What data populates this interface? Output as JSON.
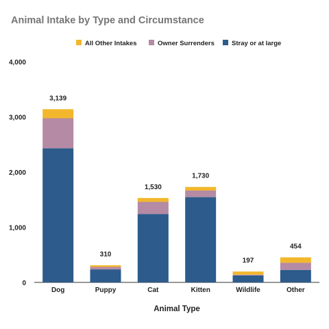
{
  "chart_data": {
    "type": "bar",
    "stacked": true,
    "title": "Animal Intake by Type and Circumstance",
    "xlabel": "Animal Type",
    "ylabel": "",
    "categories": [
      "Dog",
      "Puppy",
      "Cat",
      "Kitten",
      "Wildlife",
      "Other"
    ],
    "series": [
      {
        "name": "Stray or at large",
        "color": "#2c5b8c",
        "values": [
          2430,
          235,
          1240,
          1545,
          125,
          225
        ]
      },
      {
        "name": "Owner Surrenders",
        "color": "#b48aa4",
        "values": [
          545,
          45,
          220,
          120,
          15,
          130
        ]
      },
      {
        "name": "All Other Intakes",
        "color": "#f2b72c",
        "values": [
          164,
          30,
          70,
          65,
          57,
          99
        ]
      }
    ],
    "totals": [
      3139,
      310,
      1530,
      1730,
      197,
      454
    ],
    "total_labels": [
      "3,139",
      "310",
      "1,530",
      "1,730",
      "197",
      "454"
    ],
    "ylim": [
      0,
      4000
    ],
    "yticks": [
      0,
      1000,
      2000,
      3000,
      4000
    ],
    "ytick_labels": [
      "0",
      "1,000",
      "2,000",
      "3,000",
      "4,000"
    ],
    "legend_order": [
      "All Other Intakes",
      "Owner Surrenders",
      "Stray or at large"
    ],
    "legend_position": "top",
    "grid": false
  }
}
